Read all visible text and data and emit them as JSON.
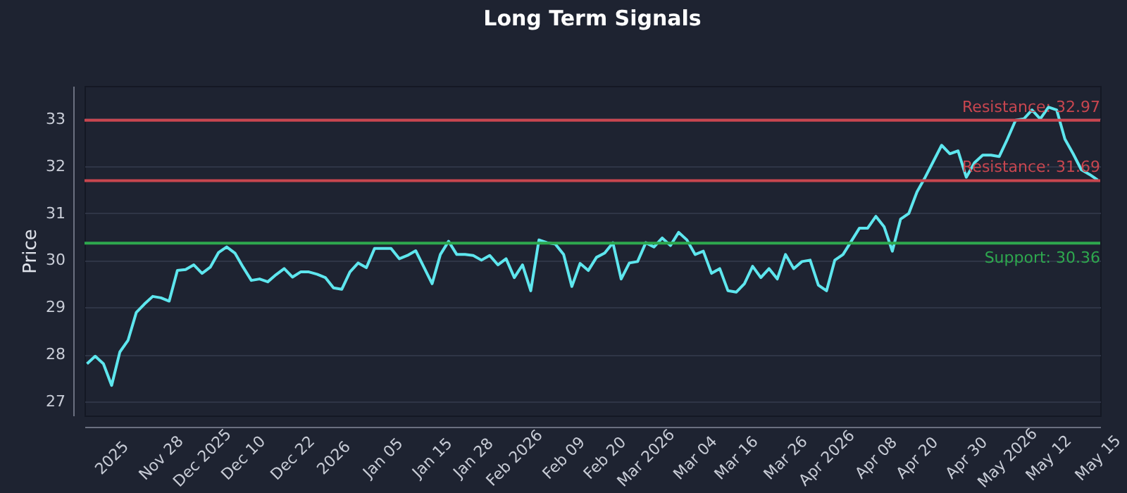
{
  "chart_data": {
    "type": "line",
    "title": "Long Term Signals",
    "ylabel": "Price",
    "categories": [
      null,
      null,
      null,
      "2025",
      null,
      null,
      null,
      null,
      null,
      "Nov 28",
      null,
      null,
      null,
      null,
      "Dec 2025",
      null,
      null,
      null,
      null,
      "Dec 10",
      null,
      null,
      null,
      null,
      null,
      "Dec 22",
      null,
      null,
      null,
      null,
      "2026",
      null,
      null,
      null,
      null,
      null,
      "Jan 05",
      null,
      null,
      null,
      null,
      null,
      "Jan 15",
      null,
      null,
      null,
      null,
      "Jan 28",
      null,
      null,
      null,
      null,
      "Feb 2026",
      null,
      null,
      null,
      null,
      null,
      "Feb 09",
      null,
      null,
      null,
      null,
      "Feb 20",
      null,
      null,
      null,
      null,
      "Mar 2026",
      null,
      null,
      null,
      null,
      null,
      "Mar 04",
      null,
      null,
      null,
      null,
      "Mar 16",
      null,
      null,
      null,
      null,
      null,
      "Mar 26",
      null,
      null,
      null,
      null,
      "Apr 2026",
      null,
      null,
      null,
      null,
      null,
      "Apr 08",
      null,
      null,
      null,
      null,
      "Apr 20",
      null,
      null,
      null,
      null,
      null,
      "Apr 30",
      null,
      null,
      null,
      null,
      "May 2026",
      null,
      null,
      null,
      null,
      "May 12",
      null,
      null,
      null,
      null,
      null,
      "May 15"
    ],
    "series": [
      {
        "color": "#5ee6ee",
        "values": [
          27.8,
          27.96,
          27.8,
          27.34,
          28.05,
          28.3,
          28.89,
          29.07,
          29.23,
          29.2,
          29.13,
          29.78,
          29.8,
          29.9,
          29.72,
          29.85,
          30.16,
          30.28,
          30.15,
          29.85,
          29.57,
          29.6,
          29.54,
          29.69,
          29.82,
          29.64,
          29.75,
          29.75,
          29.7,
          29.63,
          29.41,
          29.38,
          29.75,
          29.94,
          29.84,
          30.25,
          30.25,
          30.25,
          30.03,
          30.1,
          30.2,
          29.85,
          29.5,
          30.12,
          30.4,
          30.12,
          30.12,
          30.1,
          30.0,
          30.1,
          29.9,
          30.03,
          29.63,
          29.9,
          29.35,
          30.43,
          30.37,
          30.34,
          30.12,
          29.44,
          29.93,
          29.78,
          30.06,
          30.15,
          30.37,
          29.6,
          29.94,
          29.97,
          30.37,
          30.28,
          30.47,
          30.31,
          30.59,
          30.43,
          30.12,
          30.19,
          29.72,
          29.82,
          29.35,
          29.32,
          29.5,
          29.87,
          29.63,
          29.82,
          29.6,
          30.12,
          29.82,
          29.97,
          30.0,
          29.47,
          29.35,
          30.0,
          30.12,
          30.4,
          30.68,
          30.68,
          30.93,
          30.71,
          30.19,
          30.87,
          30.99,
          31.45,
          31.76,
          32.1,
          32.44,
          32.26,
          32.32,
          31.76,
          32.07,
          32.23,
          32.23,
          32.2,
          32.57,
          32.97,
          33.0,
          33.19,
          33.0,
          33.25,
          33.19,
          32.57,
          32.26,
          31.92,
          31.82,
          31.7
        ]
      }
    ],
    "ylim": [
      26.7,
      33.7
    ],
    "yticks": [
      27,
      28,
      29,
      30,
      31,
      32,
      33
    ],
    "grid": "y",
    "ref_lines": [
      {
        "axis": "y",
        "value": 32.97,
        "label": "Resistance: 32.97",
        "color": "#c8464f"
      },
      {
        "axis": "y",
        "value": 31.69,
        "label": "Resistance: 31.69",
        "color": "#c8464f"
      },
      {
        "axis": "y",
        "value": 30.36,
        "label": "Support: 30.36",
        "color": "#2ea84e"
      }
    ]
  }
}
